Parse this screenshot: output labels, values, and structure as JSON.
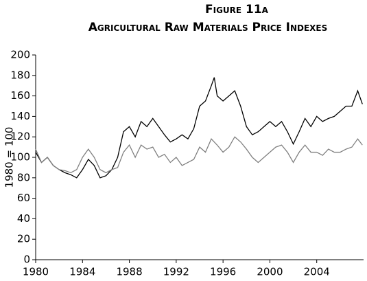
{
  "chart_data": {
    "type": "line",
    "title": "Figure 11a",
    "subtitle": "Agricultural Raw Materials Price Indexes",
    "y_label": "1980 = 100",
    "x": [
      1980,
      1980.5,
      1981,
      1981.5,
      1982,
      1982.5,
      1983,
      1983.5,
      1984,
      1984.5,
      1985,
      1985.5,
      1986,
      1986.5,
      1987,
      1987.5,
      1988,
      1988.5,
      1989,
      1989.5,
      1990,
      1990.5,
      1991,
      1991.5,
      1992,
      1992.5,
      1993,
      1993.5,
      1994,
      1994.5,
      1995,
      1995.25,
      1995.5,
      1996,
      1996.5,
      1997,
      1997.5,
      1998,
      1998.5,
      1999,
      1999.5,
      2000,
      2000.5,
      2001,
      2001.5,
      2002,
      2002.5,
      2003,
      2003.5,
      2004,
      2004.5,
      2005,
      2005.5,
      2006,
      2006.5,
      2007,
      2007.5,
      2007.9
    ],
    "series": [
      {
        "color": "#000000",
        "values": [
          105,
          95,
          100,
          92,
          88,
          85,
          83,
          80,
          88,
          98,
          92,
          80,
          82,
          88,
          100,
          125,
          130,
          120,
          135,
          130,
          138,
          130,
          122,
          115,
          118,
          122,
          118,
          128,
          150,
          155,
          170,
          178,
          160,
          155,
          160,
          165,
          150,
          130,
          122,
          125,
          130,
          135,
          130,
          135,
          125,
          113,
          125,
          138,
          130,
          140,
          135,
          138,
          140,
          145,
          150,
          150,
          165,
          152
        ]
      },
      {
        "color": "#808080",
        "values": [
          108,
          95,
          100,
          92,
          88,
          87,
          85,
          88,
          100,
          108,
          100,
          88,
          85,
          88,
          90,
          105,
          112,
          100,
          112,
          108,
          110,
          100,
          103,
          95,
          100,
          92,
          95,
          98,
          110,
          105,
          118,
          115,
          112,
          105,
          110,
          120,
          115,
          108,
          100,
          95,
          100,
          105,
          110,
          112,
          105,
          95,
          105,
          112,
          105,
          105,
          102,
          108,
          105,
          105,
          108,
          110,
          118,
          112
        ]
      }
    ],
    "xlim": [
      1980,
      2008
    ],
    "xticks": [
      1980,
      1984,
      1988,
      1992,
      1996,
      2000,
      2004
    ],
    "ylim": [
      0,
      200
    ],
    "yticks": [
      0,
      20,
      40,
      60,
      80,
      100,
      120,
      140,
      160,
      180,
      200
    ]
  }
}
